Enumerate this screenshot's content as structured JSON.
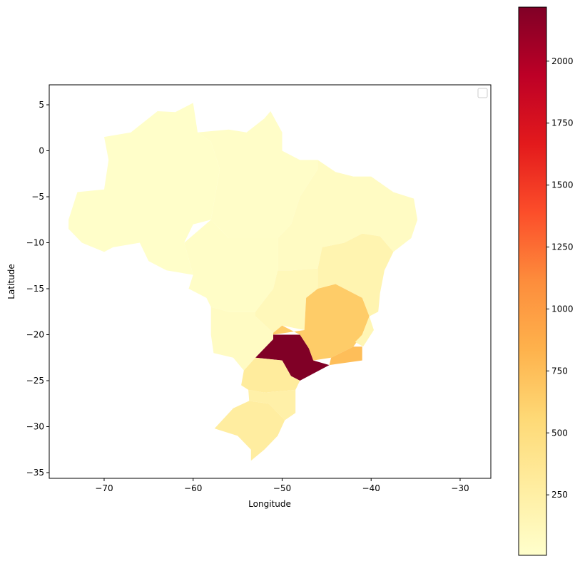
{
  "chart_data": {
    "type": "choropleth",
    "colormap": "YlOrRd",
    "x_label": "Longitude",
    "y_label": "Latitude",
    "xlim": [
      -76.17,
      -26.55
    ],
    "ylim": [
      -35.62,
      7.17
    ],
    "xticks": [
      {
        "value": -70,
        "label": "−70"
      },
      {
        "value": -60,
        "label": "−60"
      },
      {
        "value": -50,
        "label": "−50"
      },
      {
        "value": -40,
        "label": "−40"
      },
      {
        "value": -30,
        "label": "−30"
      }
    ],
    "yticks": [
      5,
      0,
      {
        "value": -5,
        "label": "−5"
      },
      {
        "value": -10,
        "label": "−10"
      },
      {
        "value": -15,
        "label": "−15"
      },
      {
        "value": -20,
        "label": "−20"
      },
      {
        "value": -25,
        "label": "−25"
      },
      {
        "value": -30,
        "label": "−30"
      },
      {
        "value": -35,
        "label": "−35"
      }
    ],
    "clim": [
      6,
      2218
    ],
    "cticks": [
      250,
      500,
      750,
      1000,
      1250,
      1500,
      1750,
      2000
    ],
    "values": [
      25,
      30,
      40,
      60,
      180,
      120,
      60,
      650,
      150,
      750,
      2218,
      300,
      230,
      280
    ]
  }
}
